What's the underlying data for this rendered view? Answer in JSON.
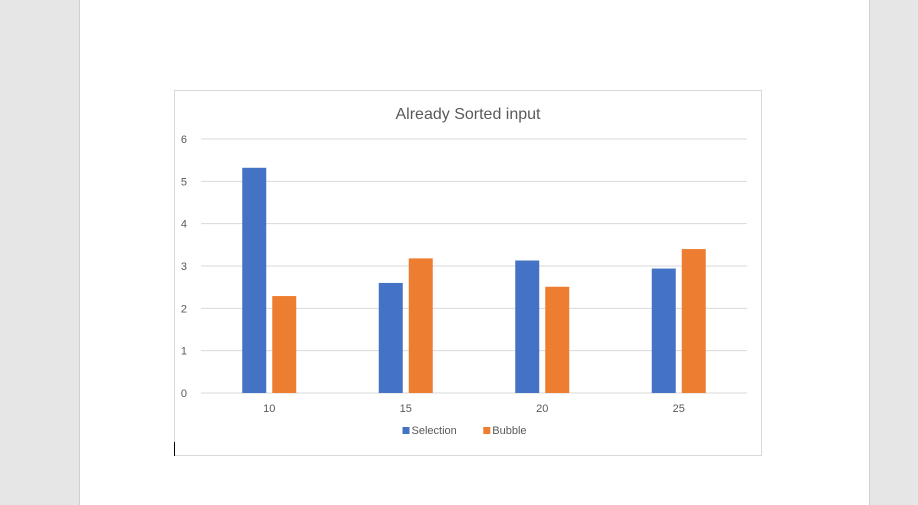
{
  "document": {
    "background_color": "#e6e6e6",
    "page_color": "#ffffff"
  },
  "chart_data": {
    "type": "bar",
    "title": "Already Sorted input",
    "categories": [
      "10",
      "15",
      "20",
      "25"
    ],
    "series": [
      {
        "name": "Selection",
        "color": "#4472c4",
        "values": [
          5.32,
          2.6,
          3.13,
          2.94
        ]
      },
      {
        "name": "Bubble",
        "color": "#ed7d31",
        "values": [
          2.29,
          3.18,
          2.51,
          3.4
        ]
      }
    ],
    "ylim": [
      0,
      6
    ],
    "yticks": [
      "0",
      "1",
      "2",
      "3",
      "4",
      "5",
      "6"
    ],
    "xlabel": "",
    "ylabel": "",
    "grid": true,
    "legend": "bottom"
  }
}
